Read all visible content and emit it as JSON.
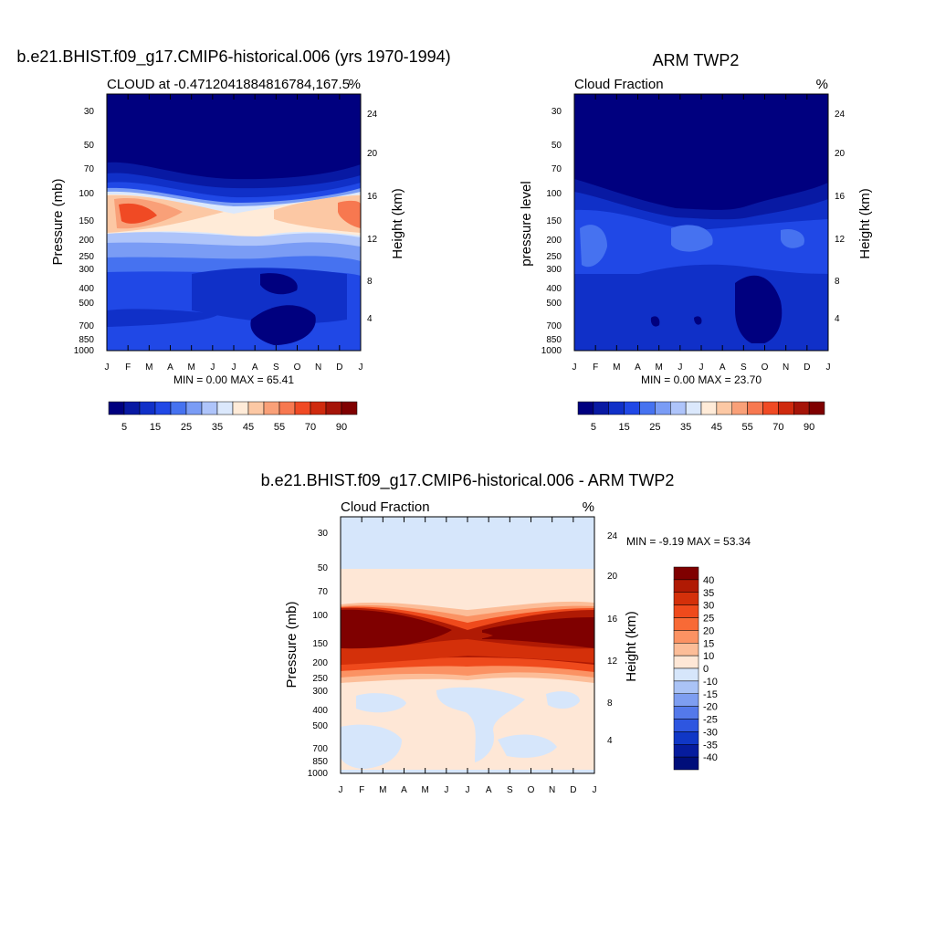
{
  "chart_data": [
    {
      "type": "heatmap",
      "title": "b.e21.BHIST.f09_g17.CMIP6-historical.006 (yrs 1970-1994)",
      "left_label": "CLOUD at -0.4712041884816784,167.5",
      "right_label": "%",
      "ylabel": "Pressure (mb)",
      "ylabel_right": "Height (km)",
      "x_ticks": [
        "J",
        "F",
        "M",
        "A",
        "M",
        "J",
        "J",
        "A",
        "S",
        "O",
        "N",
        "D",
        "J"
      ],
      "y_ticks": [
        "30",
        "50",
        "70",
        "100",
        "150",
        "200",
        "250",
        "300",
        "400",
        "500",
        "700",
        "850",
        "1000"
      ],
      "y_ticks_right": [
        "24",
        "20",
        "16",
        "12",
        "8",
        "4"
      ],
      "stats": "MIN =   0.00 MAX =  65.41",
      "colorbar_orientation": "horizontal",
      "colorbar_labels": [
        "5",
        "15",
        "25",
        "35",
        "45",
        "55",
        "70",
        "90"
      ],
      "colorbar_levels": [
        1,
        5,
        10,
        15,
        20,
        25,
        30,
        35,
        40,
        45,
        50,
        55,
        60,
        70,
        80,
        90
      ],
      "colors": [
        "#00007f",
        "#0819a3",
        "#1030c8",
        "#2048e6",
        "#4672f0",
        "#7a9cf5",
        "#aec4fa",
        "#dbe8fc",
        "#ffebd8",
        "#fcc8a4",
        "#f9a078",
        "#f77850",
        "#f04a24",
        "#cf2a0e",
        "#a51408",
        "#7f0000"
      ]
    },
    {
      "type": "heatmap",
      "title": "ARM TWP2",
      "left_label": "Cloud Fraction",
      "right_label": "%",
      "ylabel": "pressure level",
      "ylabel_right": "Height (km)",
      "x_ticks": [
        "J",
        "F",
        "M",
        "A",
        "M",
        "J",
        "J",
        "A",
        "S",
        "O",
        "N",
        "D",
        "J"
      ],
      "y_ticks": [
        "30",
        "50",
        "70",
        "100",
        "150",
        "200",
        "250",
        "300",
        "400",
        "500",
        "700",
        "850",
        "1000"
      ],
      "y_ticks_right": [
        "24",
        "20",
        "16",
        "12",
        "8",
        "4"
      ],
      "stats": "MIN =   0.00 MAX =  23.70",
      "colorbar_orientation": "horizontal",
      "colorbar_labels": [
        "5",
        "15",
        "25",
        "35",
        "45",
        "55",
        "70",
        "90"
      ],
      "colorbar_levels": [
        1,
        5,
        10,
        15,
        20,
        25,
        30,
        35,
        40,
        45,
        50,
        55,
        60,
        70,
        80,
        90
      ],
      "colors": [
        "#00007f",
        "#0819a3",
        "#1030c8",
        "#2048e6",
        "#4672f0",
        "#7a9cf5",
        "#aec4fa",
        "#dbe8fc",
        "#ffebd8",
        "#fcc8a4",
        "#f9a078",
        "#f77850",
        "#f04a24",
        "#cf2a0e",
        "#a51408",
        "#7f0000"
      ]
    },
    {
      "type": "heatmap",
      "title": "b.e21.BHIST.f09_g17.CMIP6-historical.006 - ARM TWP2",
      "left_label": "Cloud Fraction",
      "right_label": "%",
      "ylabel": "Pressure (mb)",
      "ylabel_right": "Height (km)",
      "x_ticks": [
        "J",
        "F",
        "M",
        "A",
        "M",
        "J",
        "J",
        "A",
        "S",
        "O",
        "N",
        "D",
        "J"
      ],
      "y_ticks": [
        "30",
        "50",
        "70",
        "100",
        "150",
        "200",
        "250",
        "300",
        "400",
        "500",
        "700",
        "850",
        "1000"
      ],
      "y_ticks_right": [
        "24",
        "20",
        "16",
        "12",
        "8",
        "4"
      ],
      "stats": "MIN =  -9.19 MAX =  53.34",
      "colorbar_orientation": "vertical",
      "colorbar_labels": [
        "40",
        "35",
        "30",
        "25",
        "20",
        "15",
        "10",
        "0",
        "-10",
        "-15",
        "-20",
        "-25",
        "-30",
        "-35",
        "-40"
      ],
      "colors": [
        "#7f0000",
        "#b01a04",
        "#d4300a",
        "#ef4a1c",
        "#f86a36",
        "#fb9263",
        "#fcbd98",
        "#fee7d6",
        "#d6e6fb",
        "#aac3f6",
        "#7e9ef1",
        "#5479ea",
        "#2e56e0",
        "#1037c6",
        "#061c9e",
        "#000e7a"
      ]
    }
  ]
}
